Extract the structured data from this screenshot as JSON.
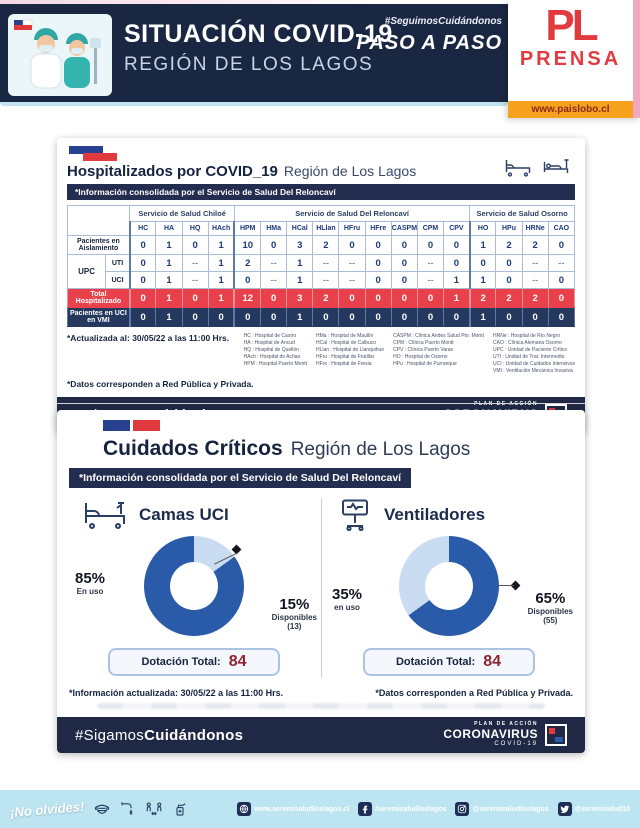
{
  "header": {
    "title": "SITUACIÓN COVID-19",
    "subtitle": "REGIÓN DE LOS LAGOS",
    "hashtag": "#SeguimosCuidándonos",
    "paso": "PASO A PASO",
    "press": {
      "initials": "PL",
      "name": "PRENSA",
      "url": "www.paislobo.cl"
    }
  },
  "hospitalizados": {
    "title_bold": "Hospitalizados por COVID_19",
    "title_rest": "Región de Los Lagos",
    "info_strip": "*Información consolidada por el Servicio de Salud Del Reloncaví",
    "updated_label": "*Actualizada al:",
    "updated_value": "30/05/22 a las 11:00 Hrs.",
    "datos_note": "*Datos corresponden a Red Pública y Privada.",
    "table": {
      "groups": [
        {
          "label": "Servicio de Salud Chiloé",
          "cols": [
            "HC",
            "HA",
            "HQ",
            "HAch"
          ]
        },
        {
          "label": "Servicio de Salud Del Reloncaví",
          "cols": [
            "HPM",
            "HMa",
            "HCal",
            "HLlan",
            "HFru",
            "HFre",
            "CASPM",
            "CPM",
            "CPV"
          ]
        },
        {
          "label": "Servicio de Salud Osorno",
          "cols": [
            "HO",
            "HPu",
            "HRNe",
            "CAO"
          ]
        }
      ],
      "rows": [
        {
          "kind": "wide",
          "cls": "",
          "label": "Pacientes en Aislamiento",
          "values": [
            "0",
            "1",
            "0",
            "1",
            "10",
            "0",
            "3",
            "2",
            "0",
            "0",
            "0",
            "0",
            "0",
            "1",
            "2",
            "2",
            "0"
          ]
        },
        {
          "kind": "upc1",
          "upc_label": "UPC",
          "label": "UTI",
          "values": [
            "0",
            "1",
            "--",
            "1",
            "2",
            "--",
            "1",
            "--",
            "--",
            "0",
            "0",
            "--",
            "0",
            "0",
            "0",
            "--",
            "--"
          ]
        },
        {
          "kind": "upc2",
          "label": "UCI",
          "values": [
            "0",
            "1",
            "--",
            "1",
            "0",
            "--",
            "1",
            "--",
            "--",
            "0",
            "0",
            "--",
            "1",
            "1",
            "0",
            "--",
            "0"
          ]
        },
        {
          "kind": "wide",
          "cls": "total",
          "label": "Total Hospitalizado",
          "values": [
            "0",
            "1",
            "0",
            "1",
            "12",
            "0",
            "3",
            "2",
            "0",
            "0",
            "0",
            "0",
            "1",
            "2",
            "2",
            "2",
            "0"
          ]
        },
        {
          "kind": "wide",
          "cls": "vmi",
          "label": "Pacientes en UCI en VMI",
          "values": [
            "0",
            "1",
            "0",
            "0",
            "0",
            "0",
            "1",
            "0",
            "0",
            "0",
            "0",
            "0",
            "0",
            "1",
            "0",
            "0",
            "0"
          ]
        }
      ]
    },
    "legend_cols": [
      [
        "HC : Hospital de Castro",
        "HA : Hospital de Ancud",
        "HQ : Hospital de Quellón",
        "HAch : Hospital de Achao",
        "HPM : Hospital Puerto Montt"
      ],
      [
        "HMa : Hospital de Maullín",
        "HCal : Hospital de Calbuco",
        "HLlan : Hospital de Llanquihue",
        "HFru : Hospital de Frutillar",
        "HFre : Hospital de Fresia"
      ],
      [
        "CASPM : Clínica Andes Salud Pto. Montt",
        "CPM : Clínica Puerto Montt",
        "CPV : Clínica Puerto Varas",
        "HO : Hospital de Osorno",
        "HPu : Hospital de Purranque"
      ],
      [
        "HRNe : Hospital de Río Negro",
        "CAO : Clínica Alemana Osorno",
        "UPC : Unidad de Paciente Crítico",
        "UTI : Unidad de Trat. Intermedio",
        "UCI : Unidad de Cuidados Intensivos",
        "VMI : Ventilación Mecánica Invasiva"
      ]
    ]
  },
  "banner": {
    "hash_light": "#Sigamos",
    "hash_bold": "Cuidándonos",
    "plan": "PLAN DE ACCIÓN",
    "corona": "CORONAVIRUS",
    "covid": "COVID-19"
  },
  "criticos": {
    "title_bold": "Cuidados Críticos",
    "title_rest": "Región de Los Lagos",
    "info_strip": "*Información consolidada por el Servicio de Salud Del Reloncaví",
    "updated_label": "*Información actualizada:",
    "updated_value": "30/05/22 a las 11:00 Hrs.",
    "datos_note": "*Datos corresponden a Red Pública y Privada."
  },
  "chart_data": [
    {
      "type": "pie",
      "title": "Camas UCI",
      "slices": [
        {
          "label": "En uso",
          "pct": 85,
          "pct_label": "85%",
          "color": "#2a5ba8"
        },
        {
          "label": "Disponibles",
          "pct": 15,
          "pct_label": "15%",
          "count": 13,
          "count_label": "(13)",
          "color": "#c9dcf2"
        }
      ],
      "total_label": "Dotación Total:",
      "total": "84",
      "legend_position": "sides"
    },
    {
      "type": "pie",
      "title": "Ventiladores",
      "slices": [
        {
          "label": "en uso",
          "pct": 35,
          "pct_label": "35%",
          "color": "#c9dcf2"
        },
        {
          "label": "Disponibles",
          "pct": 65,
          "pct_label": "65%",
          "count": 55,
          "count_label": "(55)",
          "color": "#2a5ba8"
        }
      ],
      "total_label": "Dotación Total:",
      "total": "84",
      "legend_position": "sides"
    }
  ],
  "footer": {
    "no_olvides": "¡No olvides!",
    "links": [
      {
        "icon": "globe",
        "text": "www.seremisaludloslagos.cl"
      },
      {
        "icon": "facebook",
        "text": "/seremisaludloslagos"
      },
      {
        "icon": "instagram",
        "text": "@seremisaludloslagos"
      },
      {
        "icon": "twitter",
        "text": "@seremisalud10"
      }
    ]
  }
}
